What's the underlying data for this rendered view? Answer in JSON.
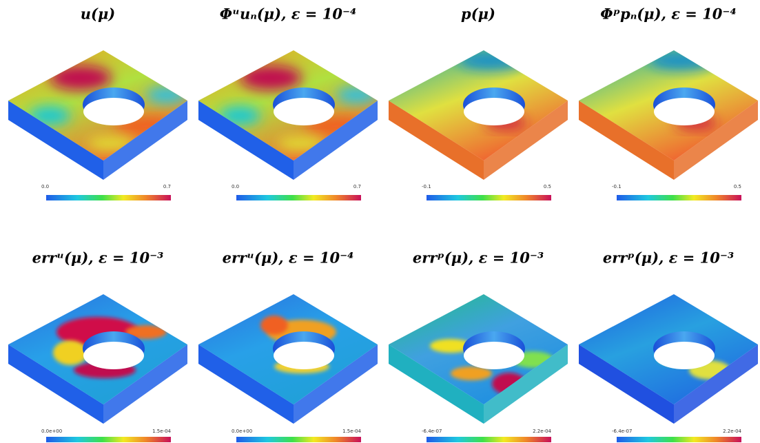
{
  "panels": [
    {
      "title": "u(μ)",
      "colorbar": {
        "min": "0.0",
        "max": "0.7"
      }
    },
    {
      "title": "Φᵘuₙ(μ), ε = 10⁻⁴",
      "colorbar": {
        "min": "0.0",
        "max": "0.7"
      }
    },
    {
      "title": "p(μ)",
      "colorbar": {
        "min": "-0.1",
        "max": "0.5"
      }
    },
    {
      "title": "Φᵖpₙ(μ), ε = 10⁻⁴",
      "colorbar": {
        "min": "-0.1",
        "max": "0.5"
      }
    },
    {
      "title": "errᵘ(μ), ε = 10⁻³",
      "colorbar": {
        "min": "0.0e+00",
        "max": "1.5e-04"
      }
    },
    {
      "title": "errᵘ(μ), ε = 10⁻⁴",
      "colorbar": {
        "min": "0.0e+00",
        "max": "1.5e-04"
      }
    },
    {
      "title": "errᵖ(μ), ε = 10⁻³",
      "colorbar": {
        "min": "-6.4e-07",
        "max": "2.2e-04"
      }
    },
    {
      "title": "errᵖ(μ), ε = 10⁻³",
      "colorbar": {
        "min": "-6.4e-07",
        "max": "2.2e-04"
      }
    }
  ]
}
